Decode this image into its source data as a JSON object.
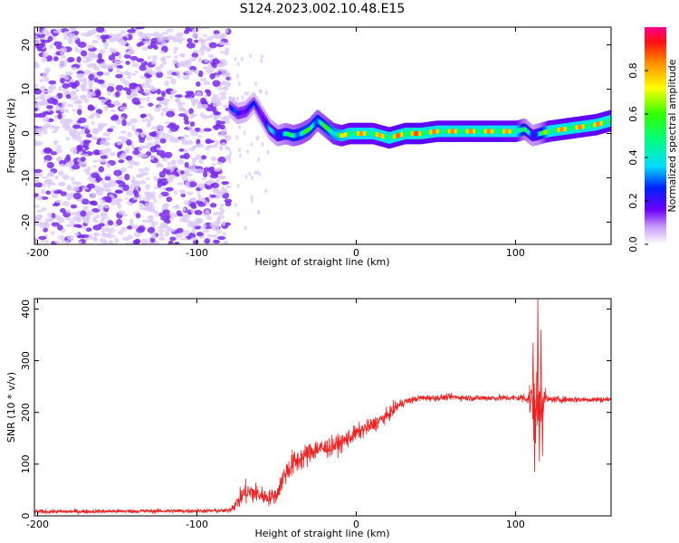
{
  "title": "S124.2023.002.10.48.E15",
  "colors": {
    "snr_line": "#ee2222",
    "noise_purple": "#7a2cf0",
    "noise_light": "#d9c8f8"
  },
  "chart_data": [
    {
      "type": "heatmap",
      "name": "spectrogram",
      "xlabel": "Height of straight line (km)",
      "ylabel": "Frequency (Hz)",
      "xlim": [
        -202,
        160
      ],
      "ylim": [
        -25,
        24
      ],
      "x_ticks": [
        -200,
        -100,
        0,
        100
      ],
      "y_ticks": [
        20,
        10,
        0,
        -10,
        -20
      ],
      "colorbar": {
        "label": "Normalized spectral amplitude",
        "range": [
          0.0,
          1.0
        ],
        "ticks": [
          0.0,
          0.2,
          0.4,
          0.6,
          0.8
        ],
        "tick_labels": [
          "0.0",
          "0.2",
          "0.4",
          "0.6",
          "0.8"
        ]
      },
      "noise_region_x": [
        -202,
        -80
      ],
      "ridge": {
        "x": [
          -80,
          -75,
          -70,
          -65,
          -60,
          -55,
          -50,
          -45,
          -40,
          -35,
          -30,
          -25,
          -20,
          -15,
          -10,
          -5,
          0,
          10,
          20,
          30,
          40,
          50,
          60,
          70,
          80,
          90,
          100,
          105,
          110,
          115,
          120,
          130,
          140,
          150,
          160
        ],
        "freq": [
          6,
          4.5,
          5,
          7,
          4,
          1,
          -0.5,
          0,
          -0.5,
          0,
          1,
          3,
          1.5,
          0,
          -0.5,
          0,
          0,
          0,
          -1,
          0,
          0,
          0.5,
          0.5,
          0.5,
          0.5,
          0.5,
          0.5,
          1,
          -0.5,
          0,
          0.5,
          1,
          1.5,
          2,
          3
        ],
        "amplitude": [
          0.25,
          0.3,
          0.3,
          0.25,
          0.3,
          0.35,
          0.4,
          0.5,
          0.55,
          0.6,
          0.6,
          0.55,
          0.6,
          0.7,
          0.75,
          0.8,
          0.85,
          0.8,
          0.85,
          0.9,
          0.9,
          0.85,
          0.85,
          0.85,
          0.85,
          0.85,
          0.8,
          0.5,
          0.4,
          0.5,
          0.8,
          0.85,
          0.85,
          0.85,
          0.85
        ]
      }
    },
    {
      "type": "line",
      "name": "snr",
      "xlabel": "Height of straight line (km)",
      "ylabel": "SNR (10 * v/v)",
      "xlim": [
        -202,
        160
      ],
      "ylim": [
        0,
        420
      ],
      "x_ticks": [
        -200,
        -100,
        0,
        100
      ],
      "y_ticks": [
        0,
        100,
        200,
        300,
        400
      ],
      "envelope": {
        "x": [
          -202,
          -80,
          -75,
          -70,
          -65,
          -60,
          -55,
          -50,
          -45,
          -40,
          -35,
          -30,
          -25,
          -20,
          -15,
          -10,
          -5,
          0,
          10,
          20,
          25,
          30,
          40,
          50,
          60,
          70,
          80,
          90,
          100,
          108,
          110,
          112,
          114,
          116,
          118,
          120,
          130,
          140,
          150,
          160
        ],
        "mean": [
          8,
          10,
          25,
          45,
          45,
          40,
          35,
          40,
          80,
          100,
          110,
          120,
          130,
          130,
          135,
          140,
          150,
          160,
          175,
          195,
          210,
          220,
          228,
          228,
          230,
          228,
          228,
          228,
          228,
          228,
          220,
          200,
          210,
          220,
          230,
          225,
          225,
          225,
          225,
          225
        ],
        "jitter": [
          8,
          8,
          25,
          45,
          45,
          35,
          30,
          30,
          45,
          50,
          45,
          45,
          40,
          40,
          35,
          35,
          35,
          30,
          30,
          25,
          25,
          15,
          12,
          12,
          12,
          12,
          12,
          12,
          12,
          25,
          110,
          120,
          130,
          110,
          40,
          12,
          12,
          12,
          12,
          12
        ]
      },
      "spikes": [
        {
          "x": 111,
          "y": 335
        },
        {
          "x": 112,
          "y": 85
        },
        {
          "x": 114,
          "y": 420
        },
        {
          "x": 115,
          "y": 105
        },
        {
          "x": 116,
          "y": 360
        },
        {
          "x": 117,
          "y": 115
        }
      ]
    }
  ]
}
